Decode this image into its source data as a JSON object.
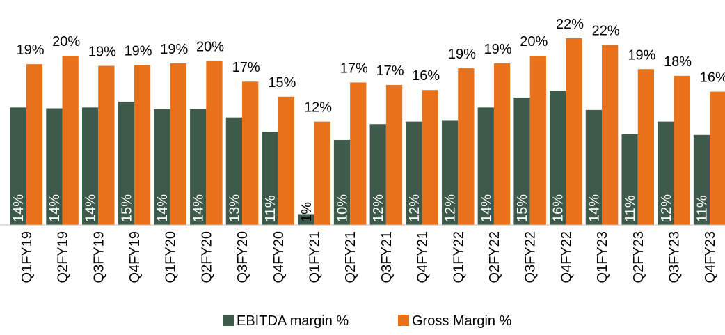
{
  "chart_data": {
    "type": "bar",
    "categories": [
      "Q1FY19",
      "Q2FY19",
      "Q3FY19",
      "Q4FY19",
      "Q1FY20",
      "Q2FY20",
      "Q3FY20",
      "Q4FY20",
      "Q1FY21",
      "Q2FY21",
      "Q3FY21",
      "Q4FY21",
      "Q1FY22",
      "Q2FY22",
      "Q3FY22",
      "Q4FY22",
      "Q1FY23",
      "Q2FY23",
      "Q3FY23",
      "Q4FY23"
    ],
    "series": [
      {
        "name": "EBITDA margin %",
        "color": "#3d5a4a",
        "values": [
          14.1,
          14.0,
          14.1,
          14.8,
          13.9,
          13.9,
          12.9,
          11.2,
          1.3,
          10.2,
          12.1,
          12.4,
          12.5,
          14.1,
          15.3,
          16.1,
          13.8,
          10.9,
          12.4,
          10.8
        ],
        "value_labels": [
          "14%",
          "14%",
          "14%",
          "15%",
          "14%",
          "14%",
          "13%",
          "11%",
          "1%",
          "10%",
          "12%",
          "12%",
          "12%",
          "14%",
          "15%",
          "16%",
          "14%",
          "11%",
          "12%",
          "11%"
        ]
      },
      {
        "name": "Gross Margin %",
        "color": "#e8711a",
        "values": [
          19.3,
          20.3,
          19.1,
          19.2,
          19.4,
          19.7,
          17.2,
          15.4,
          12.4,
          17.1,
          16.8,
          16.2,
          18.8,
          19.4,
          20.3,
          22.4,
          21.6,
          18.7,
          17.9,
          16.0
        ],
        "value_labels": [
          "19%",
          "20%",
          "19%",
          "19%",
          "19%",
          "20%",
          "17%",
          "15%",
          "12%",
          "17%",
          "17%",
          "16%",
          "19%",
          "19%",
          "20%",
          "22%",
          "22%",
          "19%",
          "18%",
          "16%"
        ]
      }
    ],
    "ylim": [
      0,
      27
    ],
    "legend": "bottom"
  }
}
